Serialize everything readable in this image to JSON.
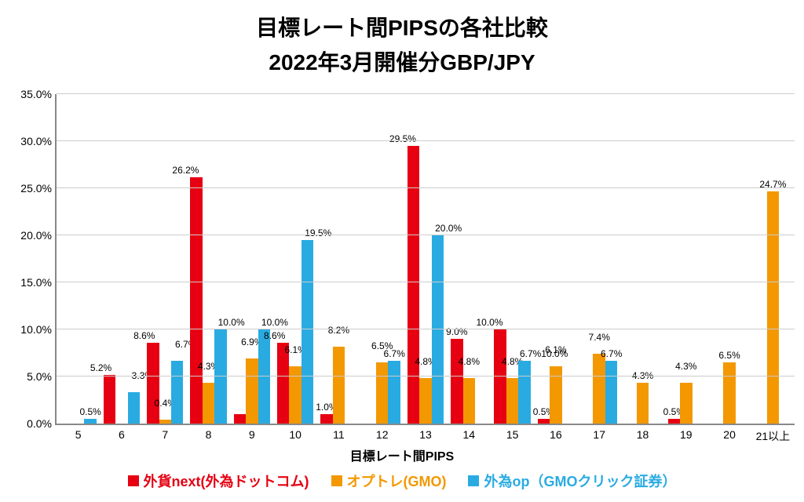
{
  "chart": {
    "type": "grouped-bar",
    "title_line1": "目標レート間PIPSの各社比較",
    "title_line2": "2022年3月開催分GBP/JPY",
    "title_fontsize": 28,
    "x_axis_title": "目標レート間PIPS",
    "x_axis_title_fontsize": 16,
    "background_color": "#ffffff",
    "grid_color": "#cccccc",
    "axis_color": "#888888",
    "ylim_min": 0.0,
    "ylim_max": 35.0,
    "ytick_step": 5.0,
    "ytick_labels": [
      "0.0%",
      "5.0%",
      "10.0%",
      "15.0%",
      "20.0%",
      "25.0%",
      "30.0%",
      "35.0%"
    ],
    "xtick_labels": [
      "5",
      "6",
      "7",
      "8",
      "9",
      "10",
      "11",
      "12",
      "13",
      "14",
      "15",
      "16",
      "17",
      "18",
      "19",
      "20",
      "21以上"
    ],
    "series": [
      {
        "key": "s1",
        "label": "外貨next(外為ドットコム)",
        "color": "#e60012"
      },
      {
        "key": "s2",
        "label": "オプトレ(GMO)",
        "color": "#f39800"
      },
      {
        "key": "s3",
        "label": "外為op（GMOクリック証券）",
        "color": "#29abe2"
      }
    ],
    "data": {
      "s1": [
        null,
        5.2,
        8.6,
        26.2,
        1.0,
        8.6,
        1.0,
        null,
        29.5,
        9.0,
        10.0,
        0.5,
        null,
        null,
        0.5,
        null,
        null
      ],
      "s2": [
        null,
        null,
        0.4,
        4.3,
        6.9,
        6.1,
        8.2,
        6.5,
        4.8,
        4.8,
        4.8,
        6.1,
        7.4,
        4.3,
        4.3,
        6.5,
        24.7
      ],
      "s3": [
        0.5,
        3.3,
        6.7,
        10.0,
        10.0,
        19.5,
        null,
        6.7,
        20.0,
        null,
        6.7,
        null,
        6.7,
        null,
        null,
        null,
        null
      ]
    },
    "labels": {
      "s1": [
        null,
        "5.2%",
        "8.6%",
        "26.2%",
        null,
        "8.6%",
        "1.0%",
        null,
        "29.5%",
        "9.0%",
        "10.0%",
        "0.5%",
        null,
        null,
        "0.5%",
        null,
        null
      ],
      "s2": [
        null,
        null,
        "0.4%",
        "4.3%",
        "6.9%",
        "6.1%",
        "8.2%",
        "6.5%",
        "4.8%",
        "4.8%",
        "4.8%",
        "6.1%",
        "7.4%",
        "4.3%",
        "4.3%",
        "6.5%",
        "24.7%"
      ],
      "s3": [
        "0.5%",
        "3.3%",
        "6.7%",
        "10.0%",
        "10.0%",
        "19.5%",
        null,
        "6.7%",
        "20.0%",
        null,
        "6.7%10.0%",
        null,
        "6.7%",
        null,
        null,
        null,
        null
      ]
    },
    "label_nudge": {
      "s1": {
        "3": "left",
        "10": "left"
      },
      "s2": {
        "8": "down",
        "9": "down",
        "10": "down"
      },
      "s3": {
        "3": "right",
        "10": "right",
        "14_special": "l"
      }
    },
    "legend_fontsize": 18,
    "bar_group_width_pct": 84,
    "label_fontsize": 12,
    "tick_fontsize": 14
  }
}
